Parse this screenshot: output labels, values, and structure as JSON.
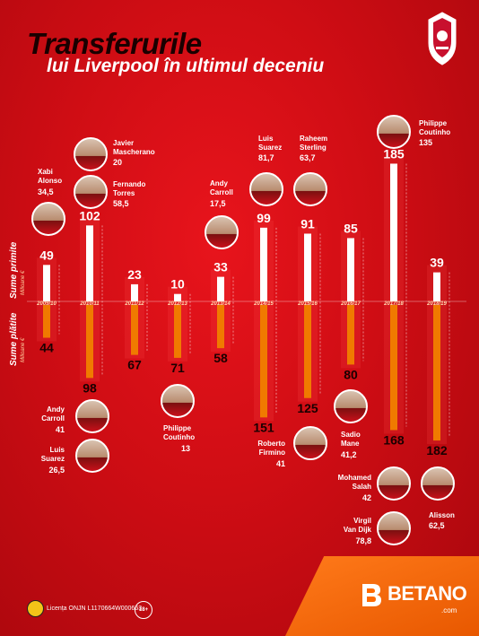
{
  "title_line1": "Transferurile",
  "title_line2": "lui Liverpool în ultimul deceniu",
  "axis_top_label": "Sume primite",
  "axis_top_unit": "Milioane €",
  "axis_bottom_label": "Sume plătite",
  "axis_bottom_unit": "Milioane €",
  "license_text": "Licența ONJN L1170664W000663",
  "age_badge": "18+",
  "brand": "BETANO",
  "brand_domain": ".com",
  "colors": {
    "received": "#ffffff",
    "paid": "#f07a00",
    "background": "#d40f16",
    "brand": "#ff6a00"
  },
  "chart_data": {
    "type": "bar",
    "categories": [
      "2009/10",
      "2010/11",
      "2011/12",
      "2012/13",
      "2013/14",
      "2014/15",
      "2015/16",
      "2016/17",
      "2017/18",
      "2018/19"
    ],
    "series": [
      {
        "name": "Sume primite",
        "values": [
          49,
          102,
          23,
          10,
          33,
          99,
          91,
          85,
          185,
          39
        ]
      },
      {
        "name": "Sume plătite",
        "values": [
          44,
          98,
          67,
          71,
          58,
          151,
          125,
          80,
          168,
          182
        ]
      }
    ]
  },
  "players": [
    {
      "name1": "Xabi",
      "name2": "Alonso",
      "value": "34,5"
    },
    {
      "name1": "Javier",
      "name2": "Mascherano",
      "value": "20"
    },
    {
      "name1": "Fernando",
      "name2": "Torres",
      "value": "58,5"
    },
    {
      "name1": "Andy",
      "name2": "Carroll",
      "value": "17,5"
    },
    {
      "name1": "Luis",
      "name2": "Suarez",
      "value": "81,7"
    },
    {
      "name1": "Raheem",
      "name2": "Sterling",
      "value": "63,7"
    },
    {
      "name1": "Philippe",
      "name2": "Coutinho",
      "value": "135"
    },
    {
      "name1": "Andy",
      "name2": "Carroll",
      "value": "41"
    },
    {
      "name1": "Luis",
      "name2": "Suarez",
      "value": "26,5"
    },
    {
      "name1": "Philippe",
      "name2": "Coutinho",
      "value": "13"
    },
    {
      "name1": "Roberto",
      "name2": "Firmino",
      "value": "41"
    },
    {
      "name1": "Sadio",
      "name2": "Mane",
      "value": "41,2"
    },
    {
      "name1": "Mohamed",
      "name2": "Salah",
      "value": "42"
    },
    {
      "name1": "Virgil",
      "name2": "Van Dijk",
      "value": "78,8"
    },
    {
      "name1": "Alisson",
      "name2": "",
      "value": "62,5"
    }
  ]
}
